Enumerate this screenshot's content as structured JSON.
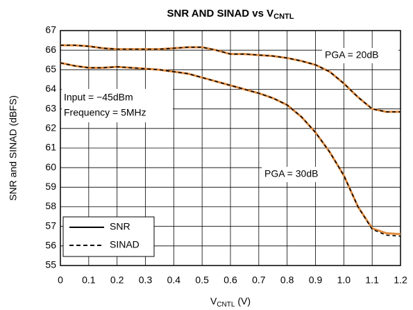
{
  "chart_data": {
    "type": "line",
    "title": [
      "SNR AND SINAD vs V",
      "CNTL"
    ],
    "x_label": [
      "V",
      "CNTL",
      " (V)"
    ],
    "y_label": "SNR and SINAD (dBFS)",
    "x": [
      0,
      0.05,
      0.1,
      0.15,
      0.2,
      0.25,
      0.3,
      0.35,
      0.4,
      0.45,
      0.5,
      0.55,
      0.6,
      0.65,
      0.7,
      0.75,
      0.8,
      0.85,
      0.9,
      0.95,
      1.0,
      1.05,
      1.1,
      1.15,
      1.2
    ],
    "styles": [
      {
        "name": "SNR",
        "color": "#e08a3c",
        "dash": false
      },
      {
        "name": "SINAD",
        "color": "#000000",
        "dash": true
      }
    ],
    "series": [
      {
        "style": 0,
        "values": [
          66.25,
          66.25,
          66.2,
          66.1,
          66.05,
          66.05,
          66.05,
          66.05,
          66.1,
          66.15,
          66.15,
          66.0,
          65.8,
          65.8,
          65.75,
          65.7,
          65.6,
          65.45,
          65.25,
          64.9,
          64.3,
          63.6,
          63.0,
          62.85,
          62.85
        ]
      },
      {
        "style": 1,
        "values": [
          66.25,
          66.25,
          66.2,
          66.1,
          66.05,
          66.05,
          66.05,
          66.05,
          66.1,
          66.15,
          66.15,
          66.0,
          65.8,
          65.8,
          65.75,
          65.7,
          65.6,
          65.45,
          65.25,
          64.9,
          64.3,
          63.6,
          63.0,
          62.85,
          62.85
        ]
      },
      {
        "style": 0,
        "values": [
          65.35,
          65.2,
          65.1,
          65.1,
          65.15,
          65.1,
          65.05,
          65.0,
          64.9,
          64.8,
          64.6,
          64.4,
          64.2,
          64.0,
          63.8,
          63.55,
          63.2,
          62.6,
          61.8,
          60.8,
          59.6,
          58.0,
          56.9,
          56.65,
          56.6
        ]
      },
      {
        "style": 1,
        "values": [
          65.35,
          65.2,
          65.1,
          65.1,
          65.15,
          65.1,
          65.05,
          65.0,
          64.9,
          64.8,
          64.6,
          64.4,
          64.2,
          64.0,
          63.8,
          63.55,
          63.2,
          62.6,
          61.8,
          60.8,
          59.6,
          58.0,
          56.85,
          56.55,
          56.5
        ]
      }
    ],
    "annotations": [
      "PGA = 20dB",
      "PGA = 30dB",
      "Input = −45dBm",
      "Frequency = 5MHz"
    ],
    "xlim": [
      0,
      1.2
    ],
    "xticks": [
      0,
      0.1,
      0.2,
      0.3,
      0.4,
      0.5,
      0.6,
      0.7,
      0.8,
      0.9,
      {
        "value": 1,
        "label": "1.0"
      },
      1.1,
      1.2
    ],
    "ylim": [
      55,
      67
    ],
    "yticks": [
      55,
      56,
      57,
      58,
      59,
      60,
      61,
      62,
      63,
      64,
      65,
      66,
      67
    ],
    "grid": true
  }
}
